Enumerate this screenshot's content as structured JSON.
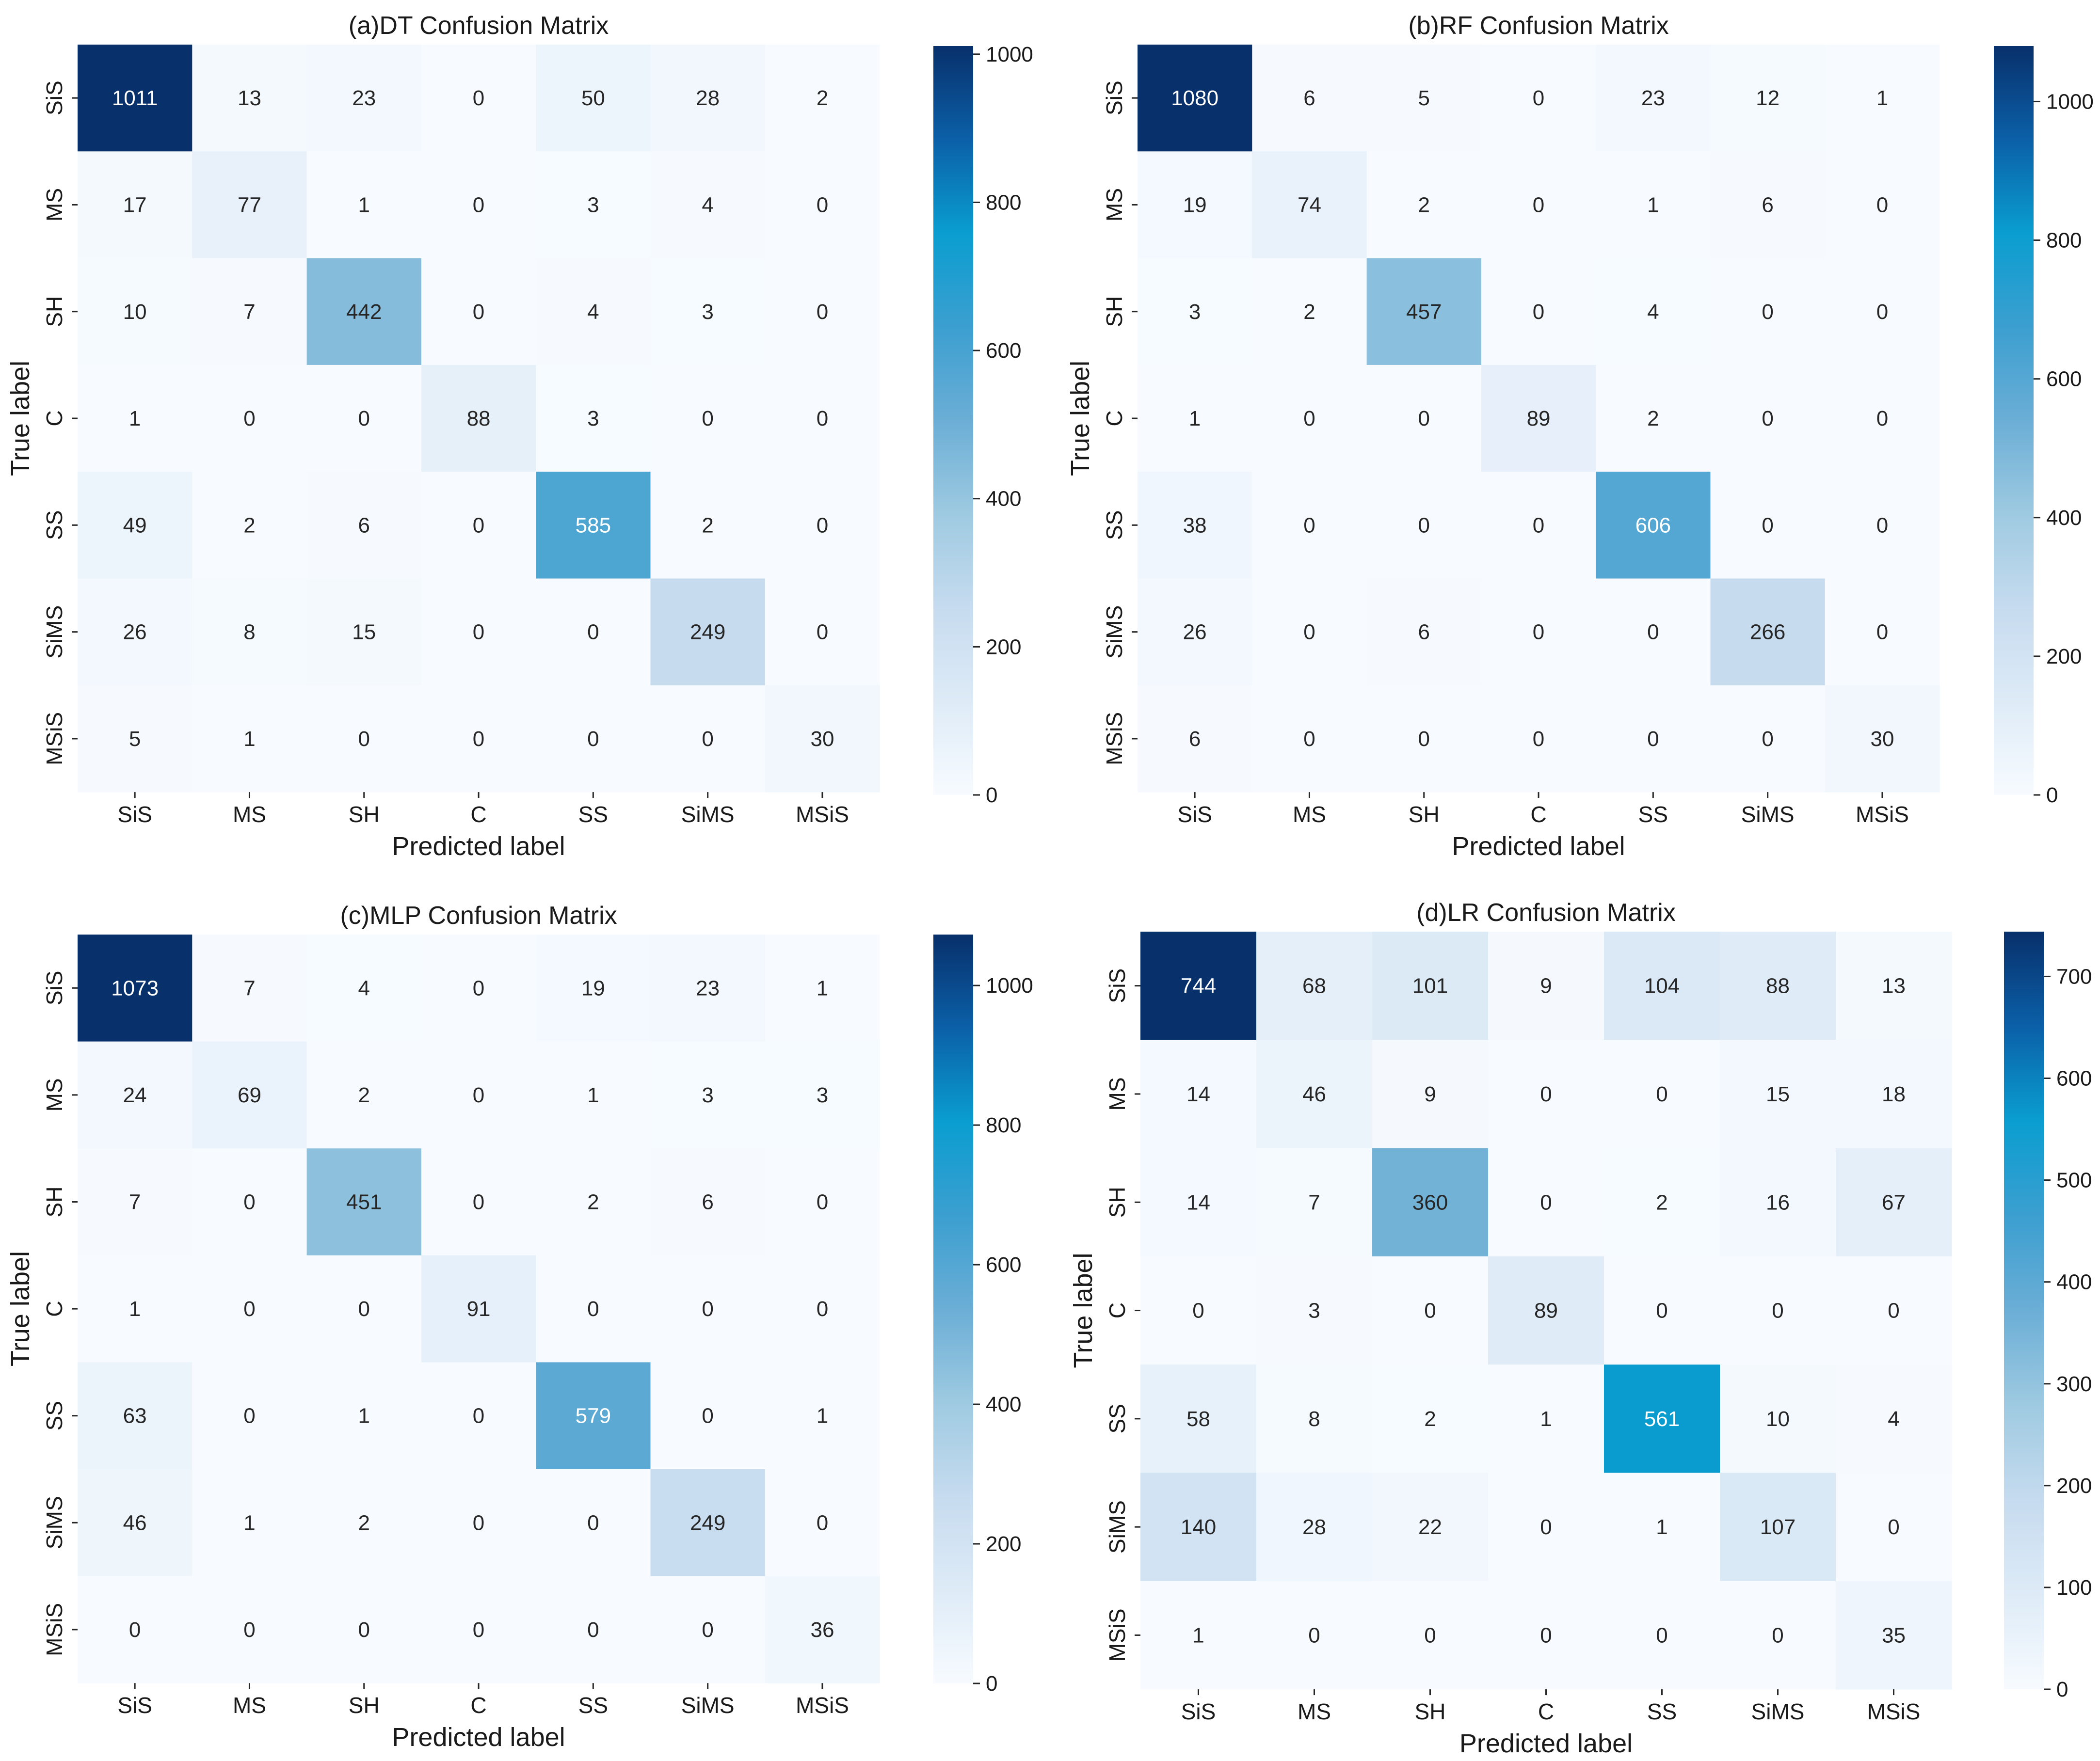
{
  "chart_data": [
    {
      "type": "heatmap",
      "title": "(a)DT Confusion Matrix",
      "xlabel": "Predicted label",
      "ylabel": "True label",
      "x_categories": [
        "SiS",
        "MS",
        "SH",
        "C",
        "SS",
        "SiMS",
        "MSiS"
      ],
      "y_categories": [
        "SiS",
        "MS",
        "SH",
        "C",
        "SS",
        "SiMS",
        "MSiS"
      ],
      "values": [
        [
          1011,
          13,
          23,
          0,
          50,
          28,
          2
        ],
        [
          17,
          77,
          1,
          0,
          3,
          4,
          0
        ],
        [
          10,
          7,
          442,
          0,
          4,
          3,
          0
        ],
        [
          1,
          0,
          0,
          88,
          3,
          0,
          0
        ],
        [
          49,
          2,
          6,
          0,
          585,
          2,
          0
        ],
        [
          26,
          8,
          15,
          0,
          0,
          249,
          0
        ],
        [
          5,
          1,
          0,
          0,
          0,
          0,
          30
        ]
      ],
      "colorbar": {
        "range": [
          0,
          1011
        ],
        "ticks": [
          0,
          200,
          400,
          600,
          800,
          1000
        ]
      },
      "colormap": "Blues"
    },
    {
      "type": "heatmap",
      "title": "(b)RF Confusion Matrix",
      "xlabel": "Predicted label",
      "ylabel": "True label",
      "x_categories": [
        "SiS",
        "MS",
        "SH",
        "C",
        "SS",
        "SiMS",
        "MSiS"
      ],
      "y_categories": [
        "SiS",
        "MS",
        "SH",
        "C",
        "SS",
        "SiMS",
        "MSiS"
      ],
      "values": [
        [
          1080,
          6,
          5,
          0,
          23,
          12,
          1
        ],
        [
          19,
          74,
          2,
          0,
          1,
          6,
          0
        ],
        [
          3,
          2,
          457,
          0,
          4,
          0,
          0
        ],
        [
          1,
          0,
          0,
          89,
          2,
          0,
          0
        ],
        [
          38,
          0,
          0,
          0,
          606,
          0,
          0
        ],
        [
          26,
          0,
          6,
          0,
          0,
          266,
          0
        ],
        [
          6,
          0,
          0,
          0,
          0,
          0,
          30
        ]
      ],
      "colorbar": {
        "range": [
          0,
          1080
        ],
        "ticks": [
          0,
          200,
          400,
          600,
          800,
          1000
        ]
      },
      "colormap": "Blues"
    },
    {
      "type": "heatmap",
      "title": "(c)MLP Confusion Matrix",
      "xlabel": "Predicted label",
      "ylabel": "True label",
      "x_categories": [
        "SiS",
        "MS",
        "SH",
        "C",
        "SS",
        "SiMS",
        "MSiS"
      ],
      "y_categories": [
        "SiS",
        "MS",
        "SH",
        "C",
        "SS",
        "SiMS",
        "MSiS"
      ],
      "values": [
        [
          1073,
          7,
          4,
          0,
          19,
          23,
          1
        ],
        [
          24,
          69,
          2,
          0,
          1,
          3,
          3
        ],
        [
          7,
          0,
          451,
          0,
          2,
          6,
          0
        ],
        [
          1,
          0,
          0,
          91,
          0,
          0,
          0
        ],
        [
          63,
          0,
          1,
          0,
          579,
          0,
          1
        ],
        [
          46,
          1,
          2,
          0,
          0,
          249,
          0
        ],
        [
          0,
          0,
          0,
          0,
          0,
          0,
          36
        ]
      ],
      "colorbar": {
        "range": [
          0,
          1073
        ],
        "ticks": [
          0,
          200,
          400,
          600,
          800,
          1000
        ]
      },
      "colormap": "Blues"
    },
    {
      "type": "heatmap",
      "title": "(d)LR Confusion Matrix",
      "xlabel": "Predicted label",
      "ylabel": "True label",
      "x_categories": [
        "SiS",
        "MS",
        "SH",
        "C",
        "SS",
        "SiMS",
        "MSiS"
      ],
      "y_categories": [
        "SiS",
        "MS",
        "SH",
        "C",
        "SS",
        "SiMS",
        "MSiS"
      ],
      "values": [
        [
          744,
          68,
          101,
          9,
          104,
          88,
          13
        ],
        [
          14,
          46,
          9,
          0,
          0,
          15,
          18
        ],
        [
          14,
          7,
          360,
          0,
          2,
          16,
          67
        ],
        [
          0,
          3,
          0,
          89,
          0,
          0,
          0
        ],
        [
          58,
          8,
          2,
          1,
          561,
          10,
          4
        ],
        [
          140,
          28,
          22,
          0,
          1,
          107,
          0
        ],
        [
          1,
          0,
          0,
          0,
          0,
          0,
          35
        ]
      ],
      "colorbar": {
        "range": [
          0,
          744
        ],
        "ticks": [
          0,
          100,
          200,
          300,
          400,
          500,
          600,
          700
        ]
      },
      "colormap": "Blues"
    }
  ]
}
